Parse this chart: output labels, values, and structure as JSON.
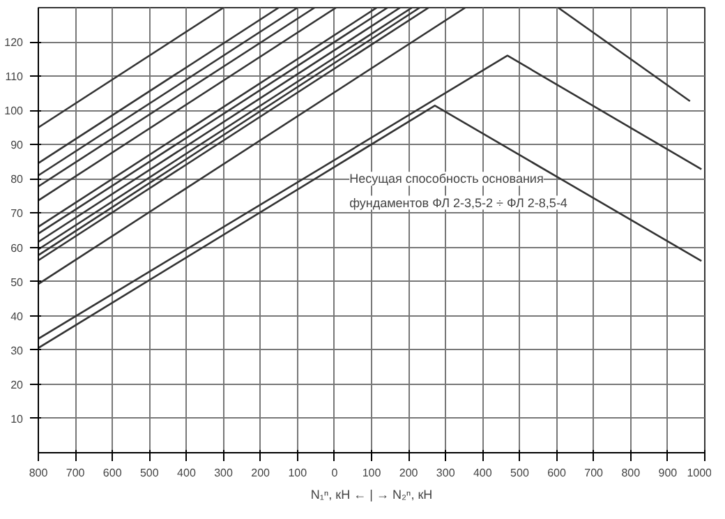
{
  "chart_data": {
    "type": "line",
    "title": "Несущая способность основания фундаментов ФЛ 2-3,5-2 ÷ ФЛ 2-8,5-4",
    "xlabel": "N₁ⁿ, кН ← | → N₂ⁿ, кН",
    "xlim": [
      -800,
      1000
    ],
    "xticks": [
      {
        "value": -800,
        "label": "800"
      },
      {
        "value": -700,
        "label": "700"
      },
      {
        "value": -600,
        "label": "600"
      },
      {
        "value": -500,
        "label": "500"
      },
      {
        "value": -400,
        "label": "400"
      },
      {
        "value": -300,
        "label": "300"
      },
      {
        "value": -200,
        "label": "200"
      },
      {
        "value": -100,
        "label": "100"
      },
      0,
      100,
      200,
      300,
      400,
      500,
      600,
      700,
      800,
      900,
      1000
    ],
    "ylim": [
      0,
      130
    ],
    "yticks": [
      10,
      20,
      30,
      40,
      50,
      60,
      70,
      80,
      90,
      100,
      110,
      120
    ],
    "grid": true,
    "series": [
      {
        "color": "#333333",
        "x": [
          -800,
          -300
        ],
        "values": [
          95,
          130
        ]
      },
      {
        "color": "#333333",
        "x": [
          -800,
          -151
        ],
        "values": [
          84.6,
          130
        ]
      },
      {
        "color": "#333333",
        "x": [
          -800,
          -100
        ],
        "values": [
          81,
          130
        ]
      },
      {
        "color": "#333333",
        "x": [
          -800,
          -54
        ],
        "values": [
          77.8,
          130
        ]
      },
      {
        "color": "#333333",
        "x": [
          -800,
          4
        ],
        "values": [
          73.7,
          130
        ]
      },
      {
        "color": "#333333",
        "x": [
          -800,
          114
        ],
        "values": [
          66,
          130
        ]
      },
      {
        "color": "#333333",
        "x": [
          -800,
          143
        ],
        "values": [
          64,
          130
        ]
      },
      {
        "color": "#333333",
        "x": [
          -800,
          177
        ],
        "values": [
          61.6,
          130
        ]
      },
      {
        "color": "#333333",
        "x": [
          -800,
          209
        ],
        "values": [
          59.4,
          130
        ]
      },
      {
        "color": "#333333",
        "x": [
          -800,
          230
        ],
        "values": [
          57.7,
          130
        ]
      },
      {
        "color": "#333333",
        "x": [
          -800,
          254
        ],
        "values": [
          56.2,
          130
        ]
      },
      {
        "color": "#333333",
        "x": [
          -800,
          353
        ],
        "values": [
          49.3,
          130
        ]
      },
      {
        "color": "#333333",
        "x": [
          -800,
          467,
          991
        ],
        "values": [
          33.3,
          116,
          82.8
        ]
      },
      {
        "color": "#333333",
        "x": [
          -800,
          271,
          991
        ],
        "values": [
          30.6,
          101.4,
          56
        ]
      },
      {
        "color": "#333333",
        "x": [
          604,
          960
        ],
        "values": [
          130,
          102.7
        ]
      }
    ]
  }
}
